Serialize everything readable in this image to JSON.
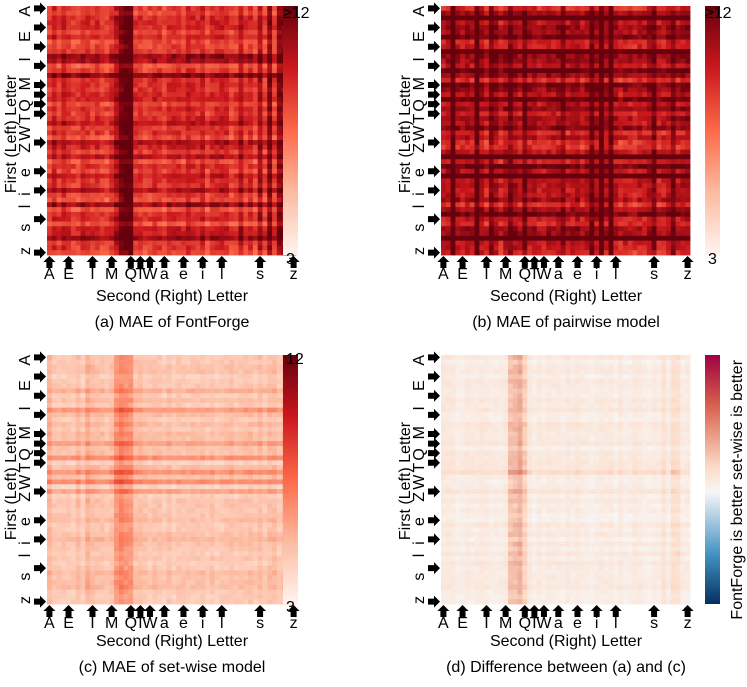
{
  "figure": {
    "panel_count": 4
  },
  "chart_data": [
    {
      "type": "heatmap",
      "panel": "a",
      "caption": "(a) MAE of FontForge",
      "xlabel": "Second (Right) Letter",
      "ylabel": "First (Left) Letter",
      "x_tick_labels": [
        "A",
        "E",
        "I",
        "M",
        "Q",
        "T",
        "W",
        "a",
        "e",
        "i",
        "l",
        "s",
        "z"
      ],
      "y_tick_labels": [
        "A",
        "E",
        "I",
        "M",
        "Q",
        "T",
        "W",
        "Z",
        "e",
        "i",
        "l",
        "s",
        "z"
      ],
      "y_axis_text": "z  s  l i  e  ZWTQ M  I  E  A",
      "y_axis_text_reversed": "A  E  I  M QTWZ  e  i l  s  z",
      "colorbar": {
        "min": 3,
        "max": 12,
        "min_label": "3",
        "max_label": "≥12",
        "colormap": "Reds",
        "low_color": "#fff5f0",
        "high_color": "#67000d"
      },
      "overall_level": 0.66,
      "noise": 0.14,
      "row_effects": [
        {
          "row": 0,
          "level": -0.05
        },
        {
          "row": 3,
          "level": 0.08
        },
        {
          "row": 6,
          "level": 0.1
        },
        {
          "row": 10,
          "level": 0.18
        },
        {
          "row": 11,
          "level": 0.12
        },
        {
          "row": 14,
          "level": 0.2
        },
        {
          "row": 17,
          "level": 0.1
        },
        {
          "row": 21,
          "level": 0.12
        },
        {
          "row": 24,
          "level": 0.05
        },
        {
          "row": 28,
          "level": 0.1
        },
        {
          "row": 31,
          "level": 0.15
        },
        {
          "row": 35,
          "level": 0.14
        },
        {
          "row": 38,
          "level": 0.12
        },
        {
          "row": 41,
          "level": 0.14
        },
        {
          "row": 44,
          "level": 0.1
        },
        {
          "row": 48,
          "level": 0.15
        }
      ],
      "col_effects": [
        {
          "col": 14,
          "level": 0.2
        },
        {
          "col": 15,
          "level": 0.25
        },
        {
          "col": 16,
          "level": 0.32
        },
        {
          "col": 17,
          "level": 0.3
        },
        {
          "col": 40,
          "level": 0.1
        },
        {
          "col": 44,
          "level": 0.15
        },
        {
          "col": 46,
          "level": 0.2
        },
        {
          "col": 48,
          "level": 0.28
        },
        {
          "col": 49,
          "level": 0.3
        }
      ]
    },
    {
      "type": "heatmap",
      "panel": "b",
      "caption": "(b) MAE of pairwise model",
      "xlabel": "Second (Right) Letter",
      "ylabel": "First (Left) Letter",
      "x_tick_labels": [
        "A",
        "E",
        "I",
        "M",
        "Q",
        "T",
        "W",
        "a",
        "e",
        "i",
        "l",
        "s",
        "z"
      ],
      "y_tick_labels": [
        "A",
        "E",
        "I",
        "M",
        "Q",
        "T",
        "W",
        "Z",
        "e",
        "i",
        "l",
        "s",
        "z"
      ],
      "y_axis_text": "z  s  l i  e  ZWTQ M  I  E  A",
      "y_axis_text_reversed": "A  E  I  M QTWZ  e  i l  s  z",
      "colorbar": {
        "min": 3,
        "max": 12,
        "min_label": "3",
        "max_label": "≥12",
        "colormap": "Reds",
        "low_color": "#fff5f0",
        "high_color": "#67000d"
      },
      "overall_level": 0.78,
      "noise": 0.16,
      "row_effects": [
        {
          "row": 2,
          "level": 0.25
        },
        {
          "row": 6,
          "level": 0.2
        },
        {
          "row": 9,
          "level": 0.25
        },
        {
          "row": 13,
          "level": 0.25
        },
        {
          "row": 16,
          "level": 0.22
        },
        {
          "row": 19,
          "level": 0.25
        },
        {
          "row": 25,
          "level": 0.22
        },
        {
          "row": 31,
          "level": 0.3
        },
        {
          "row": 33,
          "level": 0.3
        },
        {
          "row": 35,
          "level": 0.25
        },
        {
          "row": 43,
          "level": 0.2
        },
        {
          "row": 48,
          "level": 0.22
        }
      ],
      "col_effects": [
        {
          "col": 2,
          "level": 0.25
        },
        {
          "col": 7,
          "level": 0.2
        },
        {
          "col": 10,
          "level": 0.22
        },
        {
          "col": 14,
          "level": 0.25
        },
        {
          "col": 17,
          "level": 0.2
        },
        {
          "col": 25,
          "level": 0.2
        },
        {
          "col": 31,
          "level": 0.28
        },
        {
          "col": 33,
          "level": 0.3
        },
        {
          "col": 35,
          "level": 0.28
        },
        {
          "col": 44,
          "level": 0.2
        },
        {
          "col": 48,
          "level": 0.2
        }
      ]
    },
    {
      "type": "heatmap",
      "panel": "c",
      "caption": "(c) MAE of set-wise model",
      "xlabel": "Second (Right) Letter",
      "ylabel": "First (Left) Letter",
      "x_tick_labels": [
        "A",
        "E",
        "I",
        "M",
        "Q",
        "T",
        "W",
        "a",
        "e",
        "i",
        "l",
        "s",
        "z"
      ],
      "y_tick_labels": [
        "A",
        "E",
        "I",
        "M",
        "Q",
        "T",
        "W",
        "Z",
        "e",
        "i",
        "l",
        "s",
        "z"
      ],
      "y_axis_text": "z  s  l i  e  ZWTQ M  I  E  A",
      "y_axis_text_reversed": "A  E  I  M QTWZ  e  i l  s  z",
      "colorbar": {
        "min": 3,
        "max": 12,
        "min_label": "3",
        "max_label": "12",
        "colormap": "Reds",
        "low_color": "#fff5f0",
        "high_color": "#67000d"
      },
      "overall_level": 0.2,
      "noise": 0.07,
      "row_effects": [
        {
          "row": 7,
          "level": 0.1
        },
        {
          "row": 11,
          "level": 0.12
        },
        {
          "row": 18,
          "level": 0.15
        },
        {
          "row": 21,
          "level": 0.14
        },
        {
          "row": 24,
          "level": 0.2
        },
        {
          "row": 26,
          "level": 0.18
        },
        {
          "row": 28,
          "level": 0.15
        },
        {
          "row": 38,
          "level": 0.08
        },
        {
          "row": 45,
          "level": 0.06
        }
      ],
      "col_effects": [
        {
          "col": 14,
          "level": 0.12
        },
        {
          "col": 15,
          "level": 0.18
        },
        {
          "col": 16,
          "level": 0.2
        },
        {
          "col": 17,
          "level": 0.15
        },
        {
          "col": 8,
          "level": 0.06
        }
      ]
    },
    {
      "type": "heatmap",
      "panel": "d",
      "caption": "(d) Difference between (a) and (c)",
      "xlabel": "Second (Right) Letter",
      "ylabel": "First (Left) Letter",
      "x_tick_labels": [
        "A",
        "E",
        "I",
        "M",
        "Q",
        "T",
        "W",
        "a",
        "e",
        "i",
        "l",
        "s",
        "z"
      ],
      "y_tick_labels": [
        "A",
        "E",
        "I",
        "M",
        "Q",
        "T",
        "W",
        "Z",
        "e",
        "i",
        "l",
        "s",
        "z"
      ],
      "y_axis_text": "z  s  l i  e  ZWTQ M  I  E  A",
      "y_axis_text_reversed": "A  E  I  M QTWZ  e  i l  s  z",
      "colorbar": {
        "colormap": "RdBu",
        "top_label": "set-wise is better",
        "bottom_label": "FontForge is better",
        "top_color": "#9e0142",
        "mid_color": "#f7f7f7",
        "bottom_color": "#053061"
      },
      "overall_level": 0.1,
      "noise": 0.06,
      "row_effects": [
        {
          "row": 24,
          "level": 0.08
        },
        {
          "row": 28,
          "level": 0.06
        },
        {
          "row": 41,
          "level": 0.05
        }
      ],
      "col_effects": [
        {
          "col": 14,
          "level": 0.18
        },
        {
          "col": 15,
          "level": 0.2
        },
        {
          "col": 16,
          "level": 0.25
        },
        {
          "col": 17,
          "level": 0.2
        },
        {
          "col": 46,
          "level": 0.08
        },
        {
          "col": 48,
          "level": 0.12
        },
        {
          "col": 49,
          "level": 0.12
        }
      ]
    }
  ]
}
